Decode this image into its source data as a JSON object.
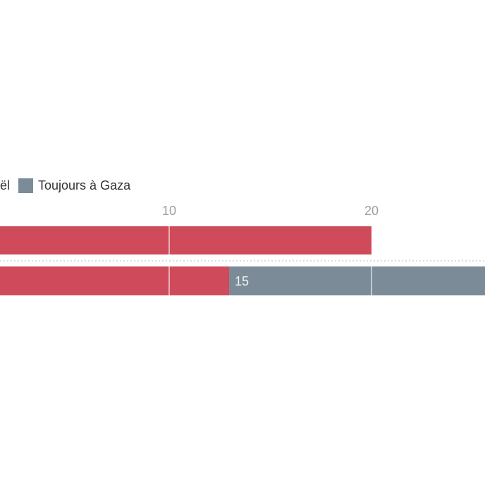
{
  "chart_data": {
    "type": "bar",
    "orientation": "horizontal",
    "stacked": true,
    "cropped_view": true,
    "categories": [
      "",
      ""
    ],
    "series": [
      {
        "name_visible": "ël",
        "color": "#cf4a5a",
        "values": [
          20,
          13
        ]
      },
      {
        "name_visible": "Toujours à Gaza",
        "color": "#7b8c98",
        "values": [
          0,
          15
        ]
      }
    ],
    "x_ticks": [
      10,
      20
    ],
    "x_tick_labels": [
      "10",
      "20"
    ],
    "grid": true,
    "legend_position": "top-left",
    "visible_value_labels": [
      {
        "row": 1,
        "series": "Toujours à Gaza",
        "text": "15"
      }
    ]
  },
  "legend": {
    "items": [
      {
        "visible_label": "ël",
        "color": "#cf4a5a",
        "swatch_visible": false
      },
      {
        "label": "Toujours à Gaza",
        "color": "#7b8c98",
        "swatch_visible": true
      }
    ]
  },
  "axis": {
    "ticks": [
      "10",
      "20"
    ]
  },
  "colors": {
    "series_red": "#cf4a5a",
    "series_bluegray": "#7b8c98",
    "tick_text": "#9e9e9e",
    "legend_text": "#333333",
    "separator_dots": "#dcdcdc",
    "bar_value_label": "#f2f2f2",
    "background": "#ffffff"
  }
}
